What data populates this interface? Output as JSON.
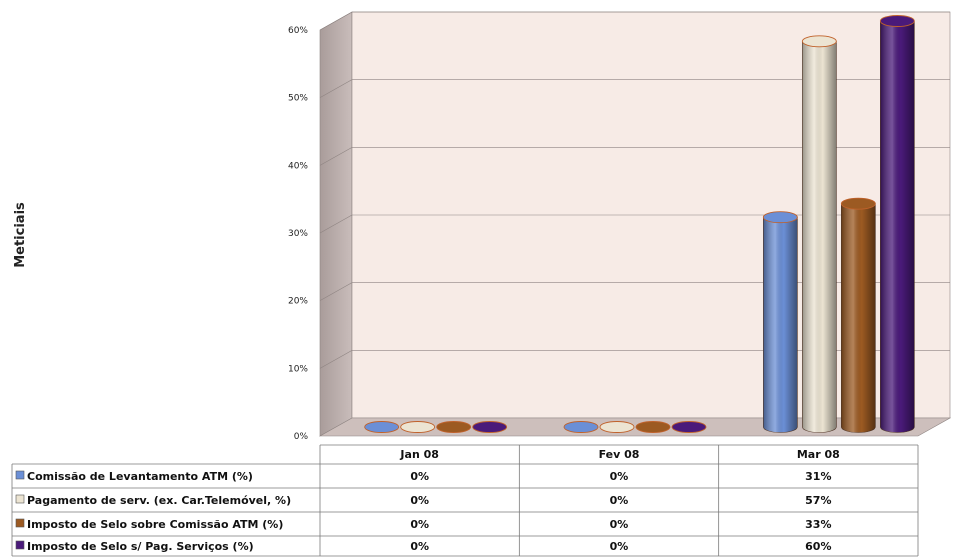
{
  "chart_data": {
    "type": "bar",
    "style": "3d-cylinder",
    "title": "",
    "xlabel": "",
    "ylabel": "Meticiais",
    "ylim": [
      0,
      60
    ],
    "yticks": [
      "0%",
      "10%",
      "20%",
      "30%",
      "40%",
      "50%",
      "60%"
    ],
    "categories": [
      "Jan 08",
      "Fev 08",
      "Mar 08"
    ],
    "grid": true,
    "legend": "data-table-below",
    "series": [
      {
        "name": "Comissão de Levantamento ATM (%)",
        "values": [
          0,
          0,
          31
        ],
        "labels": [
          "0%",
          "0%",
          "31%"
        ],
        "color": "#6b8fd6"
      },
      {
        "name": "Pagamento de serv. (ex. Car.Telemóvel, %)",
        "values": [
          0,
          0,
          57
        ],
        "labels": [
          "0%",
          "0%",
          "57%"
        ],
        "color": "#ece4d2"
      },
      {
        "name": "Imposto de Selo sobre Comissão ATM (%)",
        "values": [
          0,
          0,
          33
        ],
        "labels": [
          "0%",
          "0%",
          "33%"
        ],
        "color": "#9c5a22"
      },
      {
        "name": "Imposto de Selo s/ Pag. Serviços (%)",
        "values": [
          0,
          0,
          60
        ],
        "labels": [
          "0%",
          "0%",
          "60%"
        ],
        "color": "#4a1a7a"
      }
    ],
    "colors": {
      "wall": "#f7ebe6",
      "wall_side": "#bfb2b0",
      "floor": "#cdbfbc"
    }
  }
}
